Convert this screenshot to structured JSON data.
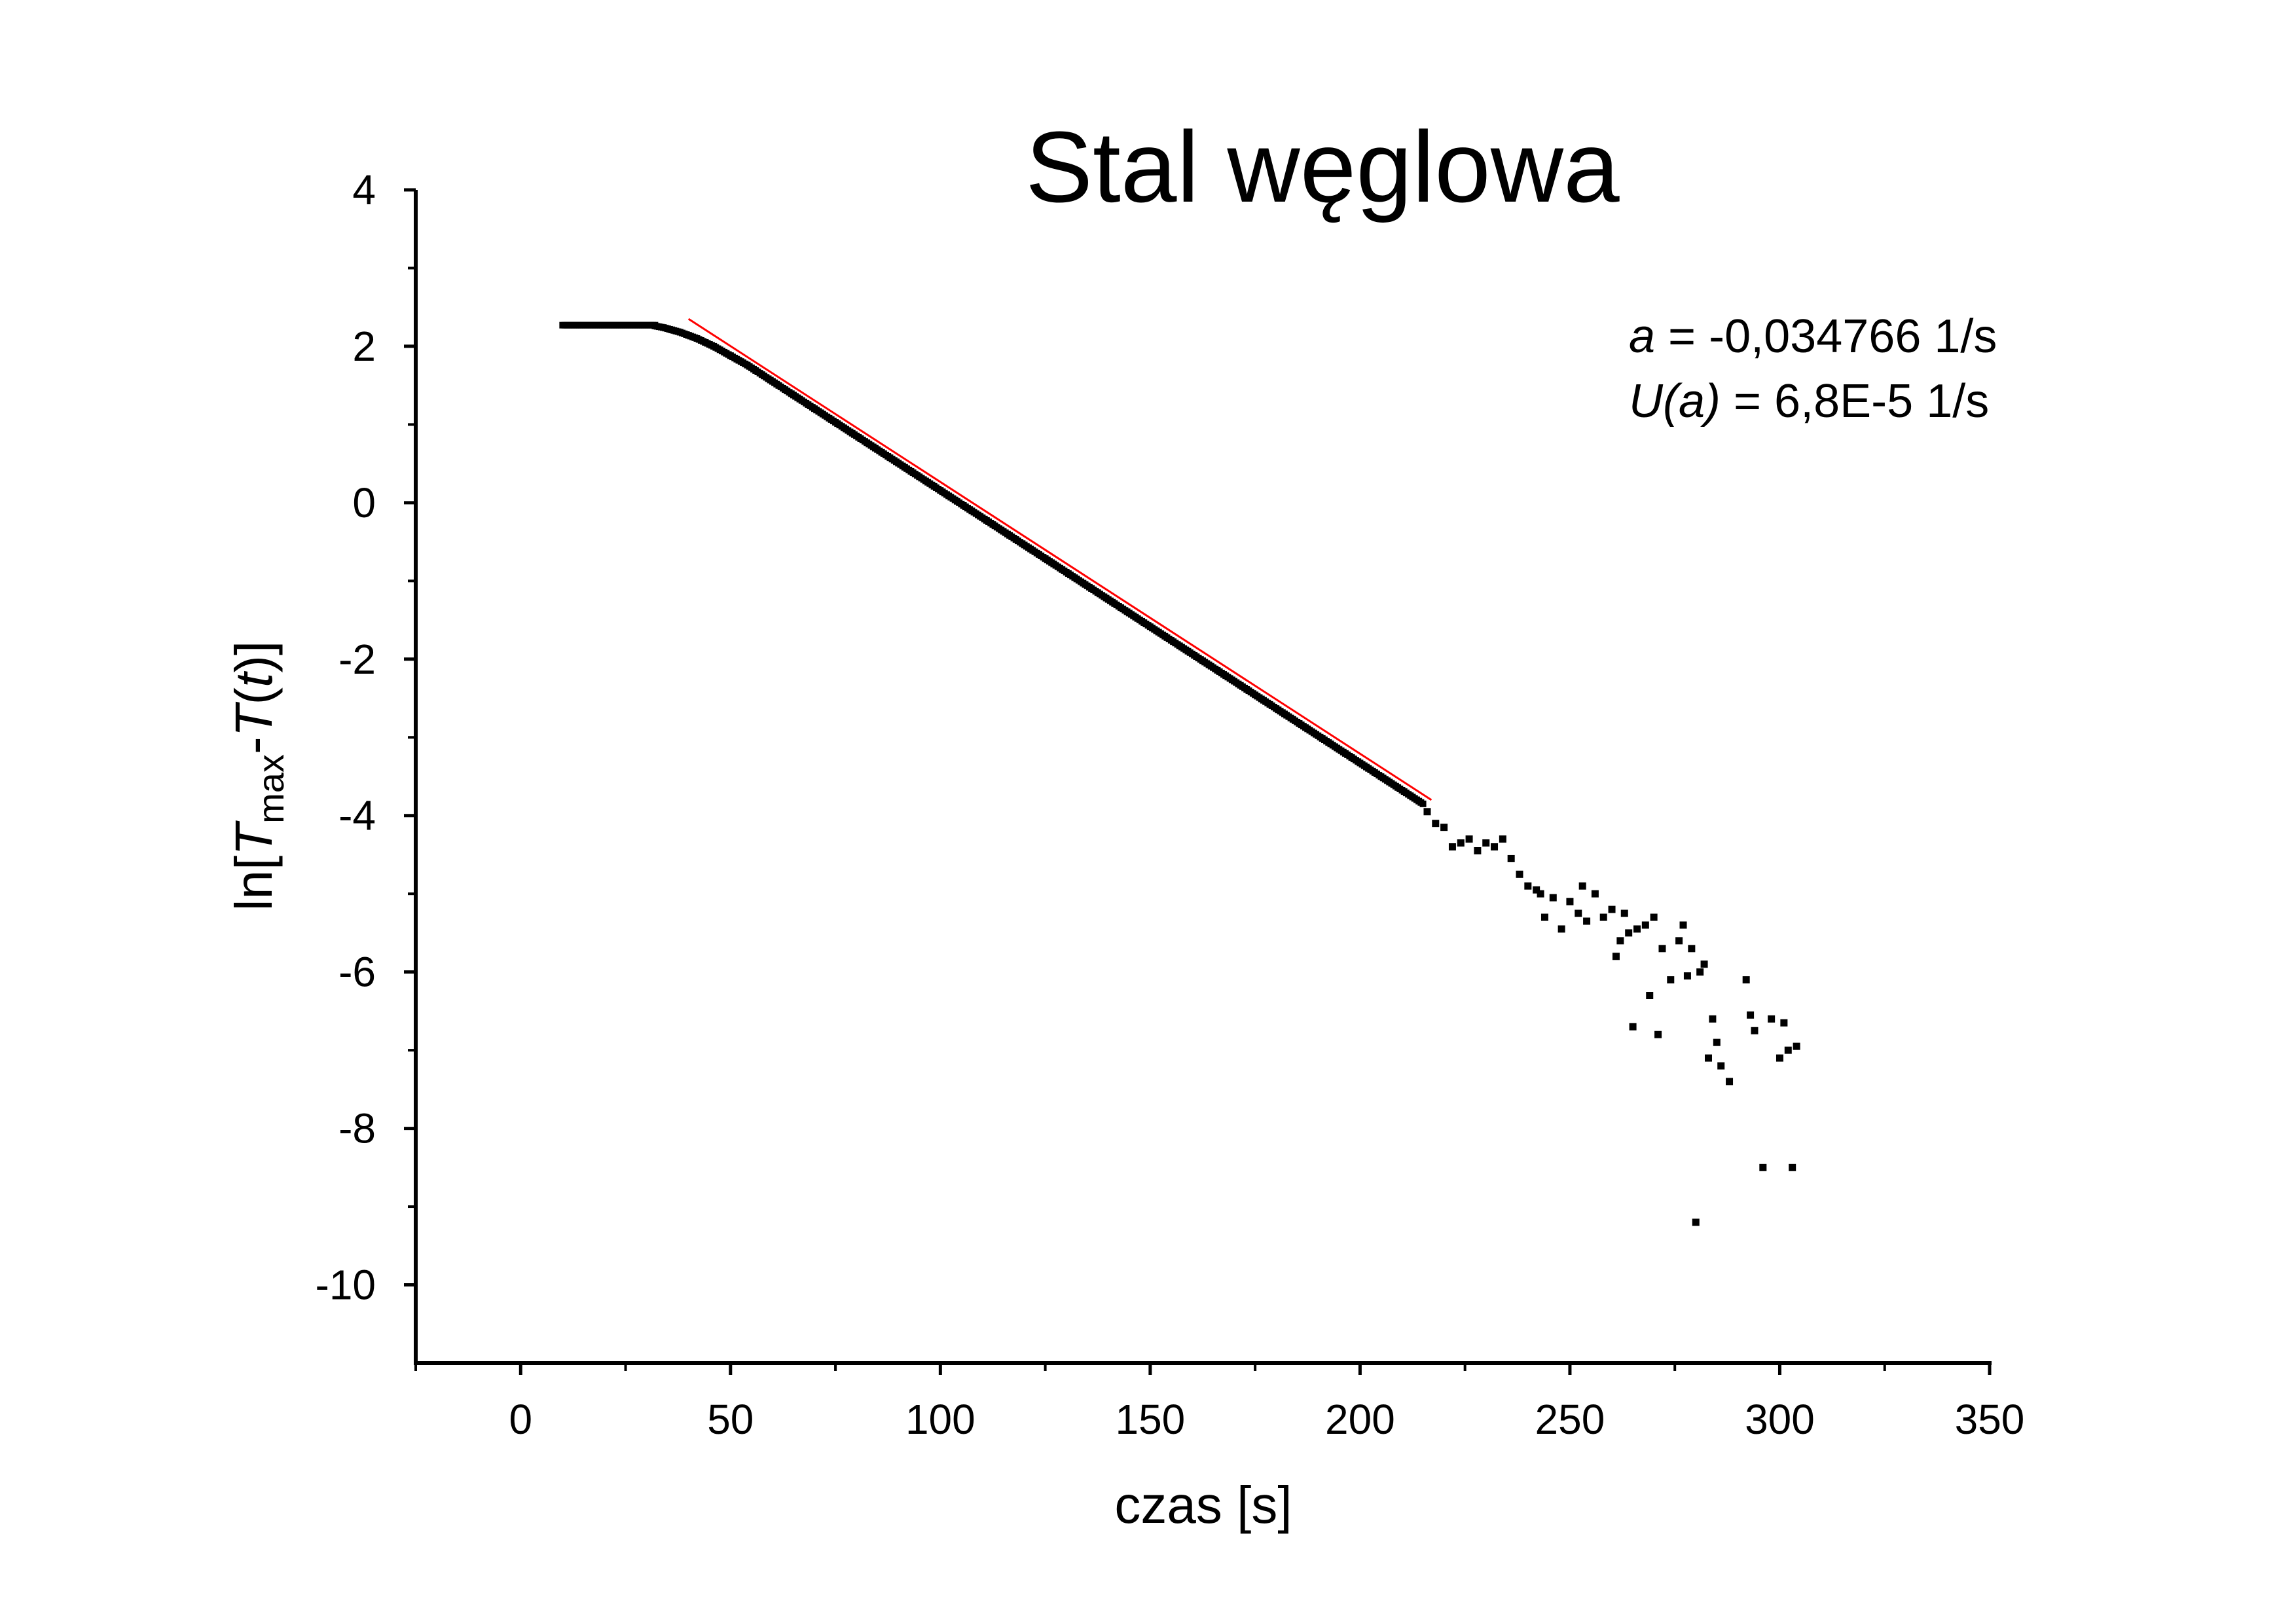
{
  "chart_data": {
    "type": "scatter",
    "title": "Stal węglowa",
    "xlabel": "czas [s]",
    "ylabel": {
      "prefix": "ln[",
      "T1": "T",
      "sub": "max",
      "mid": "-",
      "T2": "T",
      "open": "(",
      "t": "t",
      "close": ")]"
    },
    "xlim": [
      -25,
      350
    ],
    "ylim": [
      -11,
      4
    ],
    "x_ticks": [
      0,
      50,
      100,
      150,
      200,
      250,
      300,
      350
    ],
    "x_tick_labels": [
      "0",
      "50",
      "100",
      "150",
      "200",
      "250",
      "300",
      "350"
    ],
    "y_ticks": [
      4,
      2,
      0,
      -2,
      -4,
      -6,
      -8,
      -10
    ],
    "y_tick_labels": [
      "4",
      "2",
      "0",
      "-2",
      "-4",
      "-6",
      "-8",
      "-10"
    ],
    "grid": false,
    "series": [
      {
        "marker": "square",
        "color": "#000000",
        "dense_segments": [
          {
            "x": [
              10,
              32
            ],
            "y": [
              2.27,
              2.27
            ]
          },
          {
            "x": [
              32,
              34,
              36,
              38,
              40,
              42,
              44,
              46,
              48,
              50,
              52,
              54
            ],
            "y": [
              2.26,
              2.24,
              2.21,
              2.18,
              2.14,
              2.1,
              2.05,
              2.0,
              1.94,
              1.88,
              1.82,
              1.76
            ]
          },
          {
            "x": [
              54,
              215
            ],
            "y": [
              1.76,
              -3.85
            ]
          }
        ],
        "scattered_points": {
          "x": [
            216,
            218,
            220,
            222,
            224,
            226,
            228,
            230,
            232,
            234,
            236,
            238,
            240,
            242,
            243,
            244,
            246,
            248,
            250,
            252,
            253,
            254,
            256,
            258,
            260,
            261,
            262,
            263,
            264,
            265,
            266,
            268,
            269,
            270,
            271,
            272,
            274,
            276,
            277,
            278,
            279,
            280,
            281,
            282,
            283,
            284,
            285,
            286,
            288,
            292,
            293,
            294,
            296,
            298,
            300,
            301,
            302,
            303,
            304
          ],
          "y": [
            -3.95,
            -4.1,
            -4.15,
            -4.4,
            -4.35,
            -4.3,
            -4.45,
            -4.35,
            -4.4,
            -4.3,
            -4.55,
            -4.75,
            -4.9,
            -4.95,
            -5.0,
            -5.3,
            -5.05,
            -5.45,
            -5.1,
            -5.25,
            -4.9,
            -5.35,
            -5.0,
            -5.3,
            -5.2,
            -5.8,
            -5.6,
            -5.25,
            -5.5,
            -6.7,
            -5.45,
            -5.4,
            -6.3,
            -5.3,
            -6.8,
            -5.7,
            -6.1,
            -5.6,
            -5.4,
            -6.05,
            -5.7,
            -9.2,
            -6.0,
            -5.9,
            -7.1,
            -6.6,
            -6.9,
            -7.2,
            -7.4,
            -6.1,
            -6.55,
            -6.75,
            -8.5,
            -6.6,
            -7.1,
            -6.65,
            -7.0,
            -8.5,
            -6.95
          ]
        }
      }
    ],
    "fit_line": {
      "color": "#ff0000",
      "x": [
        40,
        217
      ],
      "y": [
        2.35,
        -3.8
      ]
    },
    "annotation": {
      "line1": {
        "var": "a",
        "rest": " = -0,034766 1/s"
      },
      "line2": {
        "var": "U(a)",
        "rest": " = 6,8E-5 1/s"
      }
    }
  }
}
